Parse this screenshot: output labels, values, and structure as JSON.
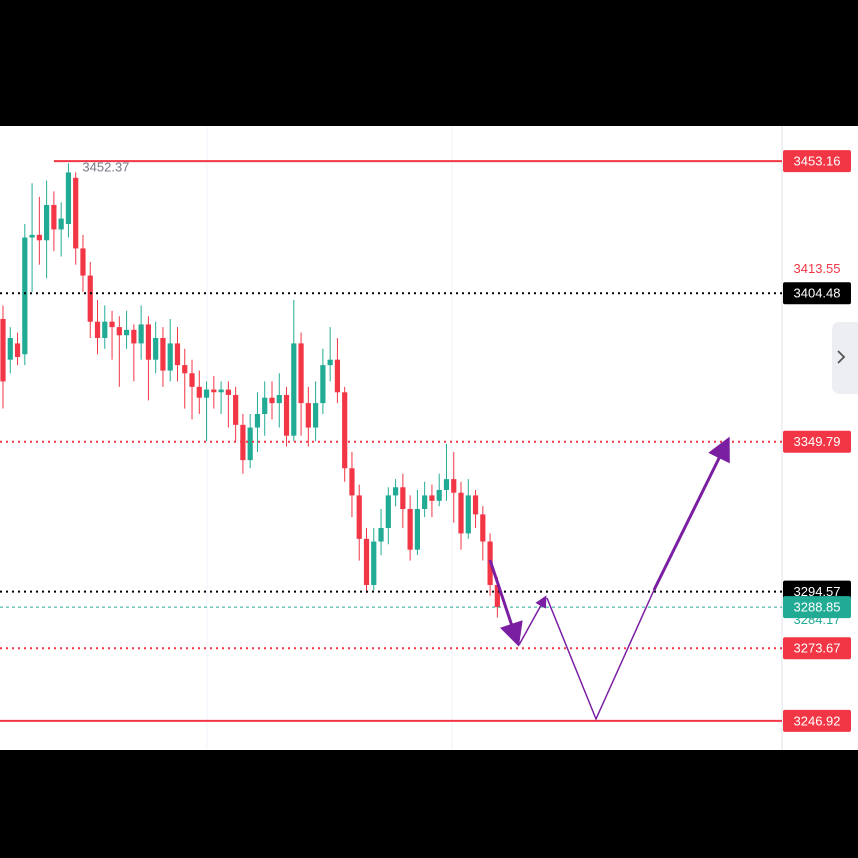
{
  "chart_data": {
    "type": "candlestick",
    "ylim": [
      3236.2,
      3466.1
    ],
    "series": [
      {
        "up_color": "#22ab94",
        "down_color": "#f23645",
        "open": [
          3395,
          3380,
          3386,
          3382,
          3425,
          3426,
          3424,
          3437,
          3428,
          3430,
          3447,
          3421,
          3411,
          3394,
          3388,
          3394,
          3392,
          3389,
          3391,
          3386,
          3393,
          3380,
          3388,
          3376,
          3386,
          3378,
          3375,
          3370,
          3366,
          3369,
          3368,
          3369,
          3367,
          3356,
          3343,
          3355,
          3360,
          3366,
          3364,
          3367,
          3352,
          3386,
          3364,
          3355,
          3364,
          3378,
          3380,
          3368,
          3340,
          3330,
          3314,
          3297,
          3313,
          3318,
          3330,
          3333,
          3325,
          3310,
          3325,
          3330,
          3328,
          3332,
          3336,
          3331,
          3316,
          3330,
          3323,
          3313,
          3297
        ],
        "high": [
          3400,
          3392,
          3390,
          3430,
          3445,
          3440,
          3446,
          3442,
          3438,
          3452.37,
          3449,
          3426,
          3416,
          3402,
          3400,
          3398,
          3396,
          3398,
          3393,
          3400,
          3396,
          3394,
          3392,
          3395,
          3392,
          3384,
          3380,
          3376,
          3372,
          3374,
          3372,
          3372,
          3370,
          3360,
          3360,
          3368,
          3372,
          3372,
          3375,
          3370,
          3402,
          3390,
          3370,
          3372,
          3384,
          3392,
          3388,
          3370,
          3346,
          3334,
          3318,
          3318,
          3325,
          3333,
          3336,
          3338,
          3330,
          3332,
          3335,
          3334,
          3338,
          3349,
          3346,
          3335,
          3336,
          3332,
          3326,
          3316,
          3300
        ],
        "low": [
          3362,
          3375,
          3378,
          3378,
          3405,
          3415,
          3410,
          3420,
          3418,
          3425,
          3415,
          3405,
          3388,
          3382,
          3384,
          3380,
          3370,
          3384,
          3372,
          3380,
          3365,
          3375,
          3370,
          3372,
          3372,
          3362,
          3358,
          3360,
          3350,
          3362,
          3360,
          3355,
          3350,
          3338,
          3340,
          3346,
          3352,
          3358,
          3355,
          3348,
          3350,
          3352,
          3348,
          3350,
          3360,
          3372,
          3364,
          3335,
          3322,
          3306,
          3294,
          3295,
          3308,
          3312,
          3326,
          3318,
          3306,
          3308,
          3322,
          3322,
          3326,
          3328,
          3320,
          3310,
          3314,
          3318,
          3306,
          3293,
          3285
        ],
        "close": [
          3372,
          3388,
          3381,
          3425,
          3426,
          3424,
          3437,
          3428,
          3432,
          3449,
          3421,
          3411,
          3394,
          3388,
          3394,
          3392,
          3389,
          3391,
          3386,
          3393,
          3380,
          3388,
          3376,
          3386,
          3378,
          3375,
          3370,
          3366,
          3369,
          3368,
          3369,
          3367,
          3356,
          3343,
          3355,
          3360,
          3366,
          3364,
          3367,
          3352,
          3386,
          3364,
          3355,
          3364,
          3378,
          3380,
          3368,
          3340,
          3330,
          3314,
          3297,
          3313,
          3318,
          3330,
          3333,
          3325,
          3310,
          3325,
          3330,
          3328,
          3332,
          3336,
          3331,
          3316,
          3330,
          3323,
          3313,
          3297,
          3288.85
        ]
      }
    ],
    "high_marker": {
      "candle": 9,
      "color": "#787b86"
    },
    "levels": [
      {
        "price": 3453.16,
        "line": "solid",
        "color": "#f23645",
        "badge": true,
        "start_candle": 7
      },
      {
        "price": 3413.55,
        "line": "none",
        "color": "#f23645",
        "badge": false
      },
      {
        "price": 3404.48,
        "line": "dotted",
        "color": "#000000",
        "badge": true
      },
      {
        "price": 3349.79,
        "line": "dotted",
        "color": "#f23645",
        "badge": true
      },
      {
        "price": 3294.57,
        "line": "dotted",
        "color": "#000000",
        "badge": true
      },
      {
        "price": 3288.85,
        "line": "dashed",
        "color": "#22ab94",
        "badge": true
      },
      {
        "price": 3284.17,
        "line": "none",
        "color": "#22ab94",
        "badge": false
      },
      {
        "price": 3273.67,
        "line": "dotted",
        "color": "#f23645",
        "badge": true
      },
      {
        "price": 3246.92,
        "line": "solid",
        "color": "#f23645",
        "badge": true
      }
    ]
  }
}
